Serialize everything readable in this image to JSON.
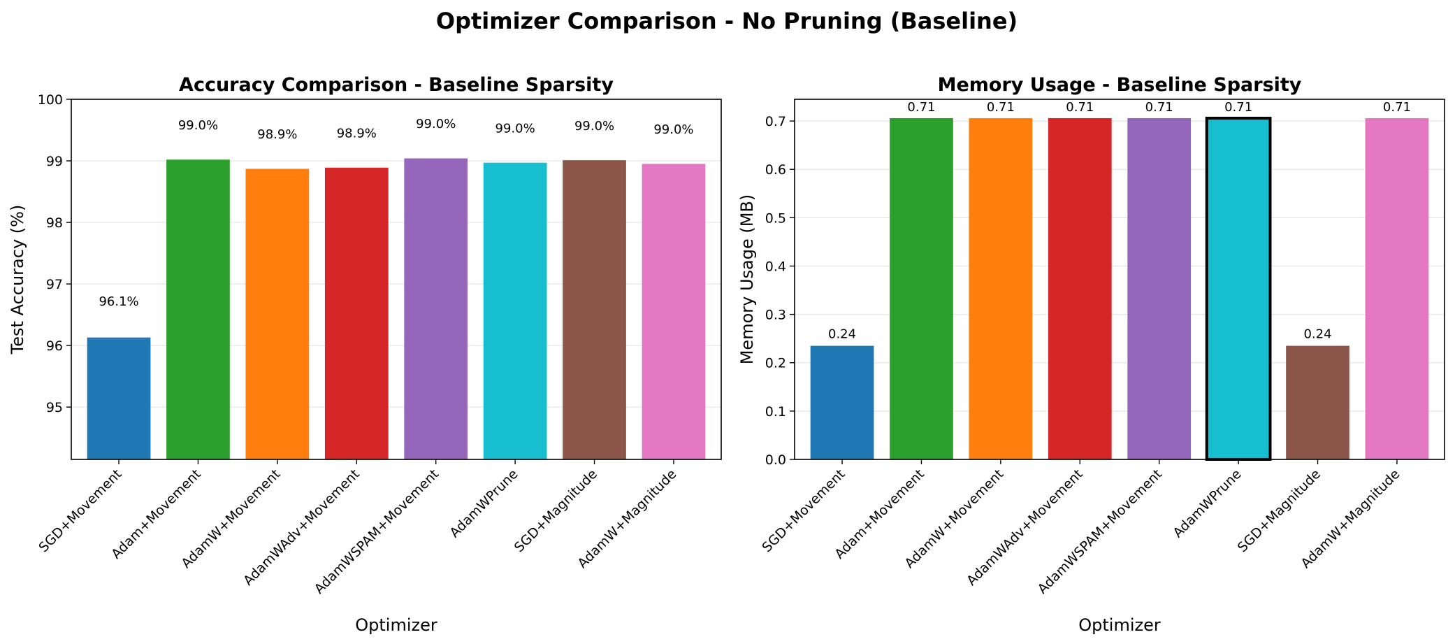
{
  "suptitle": "Optimizer Comparison - No Pruning (Baseline)",
  "chart_data": [
    {
      "type": "bar",
      "title": "Accuracy Comparison - Baseline Sparsity",
      "xlabel": "Optimizer",
      "ylabel": "Test Accuracy (%)",
      "ylim": [
        94.15,
        100
      ],
      "yticks": [
        95,
        96,
        97,
        98,
        99,
        100
      ],
      "grid": "y",
      "categories": [
        "SGD+Movement",
        "Adam+Movement",
        "AdamW+Movement",
        "AdamWAdv+Movement",
        "AdamWSPAM+Movement",
        "AdamWPrune",
        "SGD+Magnitude",
        "AdamW+Magnitude"
      ],
      "values": [
        96.13,
        99.02,
        98.87,
        98.89,
        99.04,
        98.97,
        99.01,
        98.95
      ],
      "data_labels": [
        "96.1%",
        "99.0%",
        "98.9%",
        "98.9%",
        "99.0%",
        "99.0%",
        "99.0%",
        "99.0%"
      ],
      "label_values": [
        96.72,
        99.58,
        99.43,
        99.45,
        99.6,
        99.53,
        99.57,
        99.51
      ],
      "colors": [
        "#1f77b4",
        "#2ca02c",
        "#ff7f0e",
        "#d62728",
        "#9467bd",
        "#17becf",
        "#8c564b",
        "#e377c2"
      ],
      "highlight": []
    },
    {
      "type": "bar",
      "title": "Memory Usage - Baseline Sparsity",
      "xlabel": "Optimizer",
      "ylabel": "Memory Usage (MB)",
      "ylim": [
        0,
        0.745
      ],
      "yticks": [
        0.0,
        0.1,
        0.2,
        0.3,
        0.4,
        0.5,
        0.6,
        0.7
      ],
      "grid": "y",
      "categories": [
        "SGD+Movement",
        "Adam+Movement",
        "AdamW+Movement",
        "AdamWAdv+Movement",
        "AdamWSPAM+Movement",
        "AdamWPrune",
        "SGD+Magnitude",
        "AdamW+Magnitude"
      ],
      "values": [
        0.235,
        0.706,
        0.706,
        0.706,
        0.706,
        0.706,
        0.235,
        0.706
      ],
      "data_labels": [
        "0.24",
        "0.71",
        "0.71",
        "0.71",
        "0.71",
        "0.71",
        "0.24",
        "0.71"
      ],
      "label_values": [
        0.26,
        0.729,
        0.729,
        0.729,
        0.729,
        0.729,
        0.26,
        0.729
      ],
      "colors": [
        "#1f77b4",
        "#2ca02c",
        "#ff7f0e",
        "#d62728",
        "#9467bd",
        "#17becf",
        "#8c564b",
        "#e377c2"
      ],
      "highlight": [
        "AdamWPrune"
      ]
    }
  ]
}
